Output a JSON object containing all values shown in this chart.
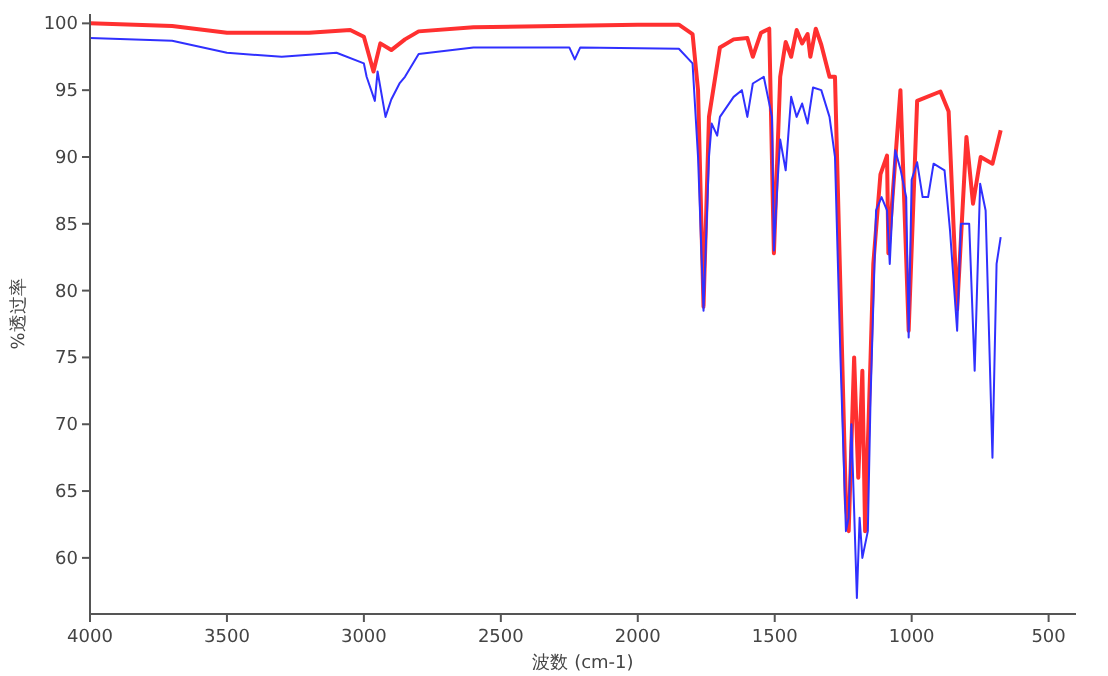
{
  "chart_data": {
    "type": "line",
    "xlabel": "波数 (cm-1)",
    "ylabel": "%透过率",
    "xlim": [
      4000,
      400
    ],
    "ylim": [
      55.8,
      100.7
    ],
    "xticks": [
      4000,
      3500,
      3000,
      2500,
      2000,
      1500,
      1000,
      500
    ],
    "yticks": [
      60,
      65,
      70,
      75,
      80,
      85,
      90,
      95,
      100
    ],
    "grid": false,
    "marker": "none",
    "line_style": "solid",
    "series": [
      {
        "color": "#ff3030",
        "x": [
          4000,
          3700,
          3500,
          3200,
          3050,
          3000,
          2965,
          2940,
          2900,
          2850,
          2800,
          2600,
          2000,
          1850,
          1800,
          1780,
          1760,
          1740,
          1700,
          1650,
          1600,
          1580,
          1550,
          1520,
          1503,
          1480,
          1460,
          1440,
          1420,
          1400,
          1380,
          1370,
          1350,
          1330,
          1300,
          1280,
          1260,
          1240,
          1230,
          1210,
          1195,
          1180,
          1170,
          1150,
          1140,
          1114,
          1090,
          1085,
          1041,
          1011,
          980,
          895,
          865,
          834,
          800,
          776,
          748,
          705,
          675
        ],
        "values": [
          100,
          99.8,
          99.3,
          99.3,
          99.5,
          99,
          96.4,
          98.5,
          98,
          98.8,
          99.4,
          99.7,
          99.9,
          99.9,
          99.2,
          95,
          78.8,
          93,
          98.2,
          98.8,
          98.9,
          97.5,
          99.3,
          99.6,
          82.8,
          96,
          98.6,
          97.5,
          99.5,
          98.5,
          99.2,
          97.5,
          99.6,
          98.4,
          96,
          96,
          80,
          64,
          62,
          75,
          66,
          74,
          62,
          75,
          82,
          88.7,
          90.1,
          82.8,
          95,
          77,
          94.2,
          94.9,
          93.4,
          78.6,
          91.5,
          86.5,
          90,
          89.5,
          92
        ]
      },
      {
        "color": "#3030ff",
        "x": [
          4000,
          3700,
          3500,
          3300,
          3100,
          3000,
          2990,
          2960,
          2950,
          2921,
          2900,
          2870,
          2850,
          2800,
          2600,
          2250,
          2230,
          2210,
          1850,
          1800,
          1780,
          1760,
          1740,
          1730,
          1710,
          1700,
          1650,
          1620,
          1600,
          1580,
          1540,
          1510,
          1503,
          1490,
          1480,
          1460,
          1440,
          1420,
          1400,
          1380,
          1360,
          1330,
          1300,
          1280,
          1260,
          1240,
          1230,
          1220,
          1200,
          1190,
          1180,
          1160,
          1150,
          1130,
          1110,
          1090,
          1080,
          1060,
          1040,
          1020,
          1011,
          1000,
          980,
          960,
          940,
          920,
          880,
          860,
          834,
          820,
          790,
          770,
          750,
          730,
          705,
          690,
          675
        ],
        "values": [
          98.9,
          98.7,
          97.8,
          97.5,
          97.8,
          97,
          96,
          94.2,
          96.4,
          93,
          94.3,
          95.5,
          96,
          97.7,
          98.2,
          98.2,
          97.3,
          98.2,
          98.1,
          97,
          90,
          78.5,
          90,
          92.5,
          91.6,
          93,
          94.5,
          95,
          93,
          95.5,
          96,
          93,
          83,
          88,
          91.3,
          89,
          94.5,
          93,
          94,
          92.5,
          95.2,
          95,
          93,
          90,
          75,
          62,
          63,
          70,
          57,
          63,
          60,
          62,
          72,
          86,
          87,
          86,
          82,
          90.5,
          89,
          87,
          76.5,
          88.3,
          89.6,
          87,
          87,
          89.5,
          89,
          84.5,
          77,
          85,
          85,
          74,
          88,
          86,
          67.5,
          82,
          84
        ]
      }
    ]
  }
}
